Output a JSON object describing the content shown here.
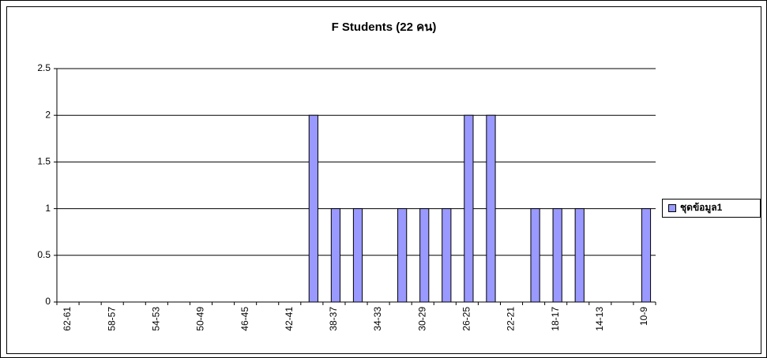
{
  "chart_data": {
    "type": "bar",
    "title": "F Students (22 คน)",
    "categories": [
      "62-61",
      null,
      "58-57",
      null,
      "54-53",
      null,
      "50-49",
      null,
      "46-45",
      null,
      "42-41",
      null,
      "38-37",
      null,
      "34-33",
      null,
      "30-29",
      null,
      "26-25",
      null,
      "22-21",
      null,
      "18-17",
      null,
      "14-13",
      null,
      "10-9"
    ],
    "series": [
      {
        "name": "ชุดข้อมูล1",
        "color": "#9999ff",
        "values": [
          0,
          0,
          0,
          0,
          0,
          0,
          0,
          0,
          0,
          0,
          0,
          2,
          1,
          1,
          0,
          1,
          1,
          1,
          2,
          2,
          0,
          1,
          1,
          1,
          0,
          0,
          1
        ]
      }
    ],
    "ylim": [
      0,
      2.5
    ],
    "yticks": [
      0,
      0.5,
      1,
      1.5,
      2,
      2.5
    ],
    "grid": true,
    "legend": "right"
  }
}
